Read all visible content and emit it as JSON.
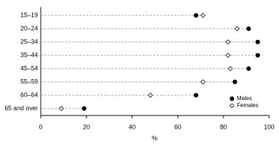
{
  "chart_data": {
    "type": "dot",
    "categories": [
      "15–19",
      "20–24",
      "25–34",
      "35–44",
      "45–54",
      "55–59",
      "60–64",
      "65 and over"
    ],
    "series": [
      {
        "name": "Males",
        "color": "#000000",
        "values": [
          68,
          91,
          95,
          95,
          91,
          85,
          68,
          19
        ]
      },
      {
        "name": "Females",
        "color": "#ffffff",
        "values": [
          71,
          86,
          82,
          82,
          83,
          71,
          48,
          9
        ]
      }
    ],
    "xlim": [
      0,
      100
    ],
    "xticks": [
      0,
      20,
      40,
      60,
      80,
      100
    ],
    "xlabel": "%",
    "legend": "bottom-right"
  }
}
